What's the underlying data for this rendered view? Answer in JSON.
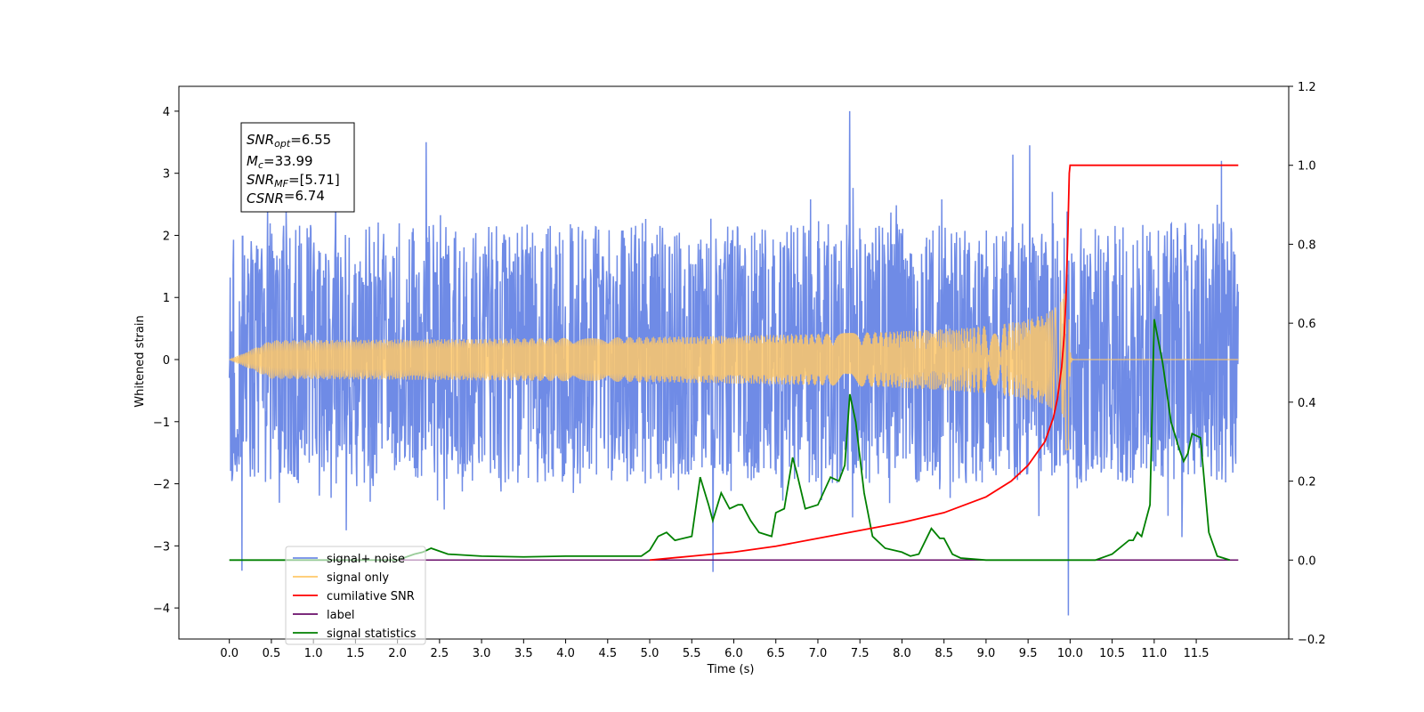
{
  "chart_data": {
    "type": "line",
    "xlabel": "Time (s)",
    "ylabel": "Whitened strain",
    "xlim": [
      -0.6,
      12.6
    ],
    "ylim": [
      -4.5,
      4.4
    ],
    "y2lim": [
      -0.2,
      1.2
    ],
    "x_ticks": [
      "0.0",
      "0.5",
      "1.0",
      "1.5",
      "2.0",
      "2.5",
      "3.0",
      "3.5",
      "4.0",
      "4.5",
      "5.0",
      "5.5",
      "6.0",
      "6.5",
      "7.0",
      "7.5",
      "8.0",
      "8.5",
      "9.0",
      "9.5",
      "10.0",
      "10.5",
      "11.0",
      "11.5"
    ],
    "y_ticks": [
      "4",
      "3",
      "2",
      "1",
      "0",
      "−1",
      "−2",
      "−3",
      "−4"
    ],
    "y2_ticks": [
      "1.2",
      "1.0",
      "0.8",
      "0.6",
      "0.4",
      "0.2",
      "0.0",
      "−0.2"
    ],
    "annotation": {
      "lines": [
        {
          "base": "SNR",
          "sub": "opt",
          "value": "=6.55"
        },
        {
          "base": "M",
          "sub": "c",
          "value": "=33.99"
        },
        {
          "base": "SNR",
          "sub": "MF",
          "value": "=[5.71]"
        },
        {
          "base": "CSNR",
          "sub": "",
          "value": "=6.74"
        }
      ]
    },
    "legend": {
      "placement": "lower-left",
      "entries": [
        {
          "label": "signal+ noise",
          "color": "#6f8be6"
        },
        {
          "label": "signal only",
          "color": "#ffc869"
        },
        {
          "label": "cumilative SNR",
          "color": "#ff0000"
        },
        {
          "label": "label",
          "color": "#6a0d6a"
        },
        {
          "label": "signal statistics",
          "color": "#008000"
        }
      ]
    },
    "series": [
      {
        "name": "signal+ noise",
        "axis": "left",
        "color": "#6f8be6",
        "x_range": [
          0.0,
          12.0
        ],
        "typical_envelope": [
          -2.0,
          2.2
        ],
        "spikes": [
          {
            "x": 7.38,
            "y": 4.0
          },
          {
            "x": 9.98,
            "y": -4.12
          },
          {
            "x": 9.52,
            "y": 3.45
          },
          {
            "x": 11.8,
            "y": 3.2
          },
          {
            "x": 0.15,
            "y": -3.4
          },
          {
            "x": 5.75,
            "y": -3.42
          },
          {
            "x": 2.34,
            "y": 3.5
          },
          {
            "x": 9.32,
            "y": 3.3
          }
        ]
      },
      {
        "name": "signal only",
        "axis": "left",
        "color": "#ffc869",
        "x_range": [
          0.0,
          12.0
        ],
        "merger_time": 9.98,
        "peak_amplitude": 1.45
      },
      {
        "name": "cumilative SNR",
        "axis": "right",
        "color": "#ff0000",
        "x": [
          5.0,
          5.5,
          6.0,
          6.5,
          7.0,
          7.5,
          8.0,
          8.5,
          9.0,
          9.3,
          9.5,
          9.7,
          9.8,
          9.85,
          9.9,
          9.93,
          9.95,
          9.97,
          9.99,
          10.0,
          11.0,
          12.0
        ],
        "values": [
          0.0,
          0.01,
          0.02,
          0.035,
          0.055,
          0.075,
          0.095,
          0.12,
          0.16,
          0.2,
          0.24,
          0.3,
          0.36,
          0.41,
          0.49,
          0.57,
          0.66,
          0.8,
          0.98,
          1.0,
          1.0,
          1.0
        ]
      },
      {
        "name": "label",
        "axis": "right",
        "color": "#6a0d6a",
        "x": [
          1.0,
          12.0
        ],
        "values": [
          0.0,
          0.0
        ]
      },
      {
        "name": "signal statistics",
        "axis": "right",
        "color": "#008000",
        "x": [
          0.0,
          2.0,
          2.2,
          2.3,
          2.4,
          2.6,
          3.0,
          3.5,
          4.0,
          4.5,
          4.9,
          5.0,
          5.1,
          5.2,
          5.3,
          5.5,
          5.6,
          5.7,
          5.75,
          5.85,
          5.95,
          6.05,
          6.1,
          6.2,
          6.3,
          6.45,
          6.5,
          6.6,
          6.7,
          6.75,
          6.85,
          7.0,
          7.15,
          7.25,
          7.32,
          7.38,
          7.45,
          7.55,
          7.65,
          7.8,
          8.0,
          8.1,
          8.2,
          8.35,
          8.45,
          8.5,
          8.6,
          8.7,
          9.0,
          9.5,
          10.0,
          10.3,
          10.5,
          10.7,
          10.75,
          10.8,
          10.85,
          10.95,
          11.0,
          11.1,
          11.2,
          11.3,
          11.35,
          11.4,
          11.45,
          11.55,
          11.65,
          11.75,
          11.9
        ],
        "values": [
          0.0,
          0.0,
          0.015,
          0.02,
          0.03,
          0.015,
          0.01,
          0.008,
          0.01,
          0.01,
          0.01,
          0.025,
          0.06,
          0.07,
          0.05,
          0.06,
          0.21,
          0.14,
          0.1,
          0.17,
          0.13,
          0.14,
          0.14,
          0.1,
          0.07,
          0.06,
          0.12,
          0.13,
          0.26,
          0.22,
          0.13,
          0.14,
          0.21,
          0.2,
          0.24,
          0.42,
          0.35,
          0.17,
          0.06,
          0.03,
          0.02,
          0.01,
          0.015,
          0.08,
          0.055,
          0.055,
          0.015,
          0.005,
          0.0,
          0.0,
          0.0,
          0.0,
          0.015,
          0.05,
          0.05,
          0.07,
          0.06,
          0.14,
          0.61,
          0.5,
          0.35,
          0.28,
          0.25,
          0.27,
          0.32,
          0.31,
          0.07,
          0.01,
          0.0
        ]
      }
    ]
  }
}
